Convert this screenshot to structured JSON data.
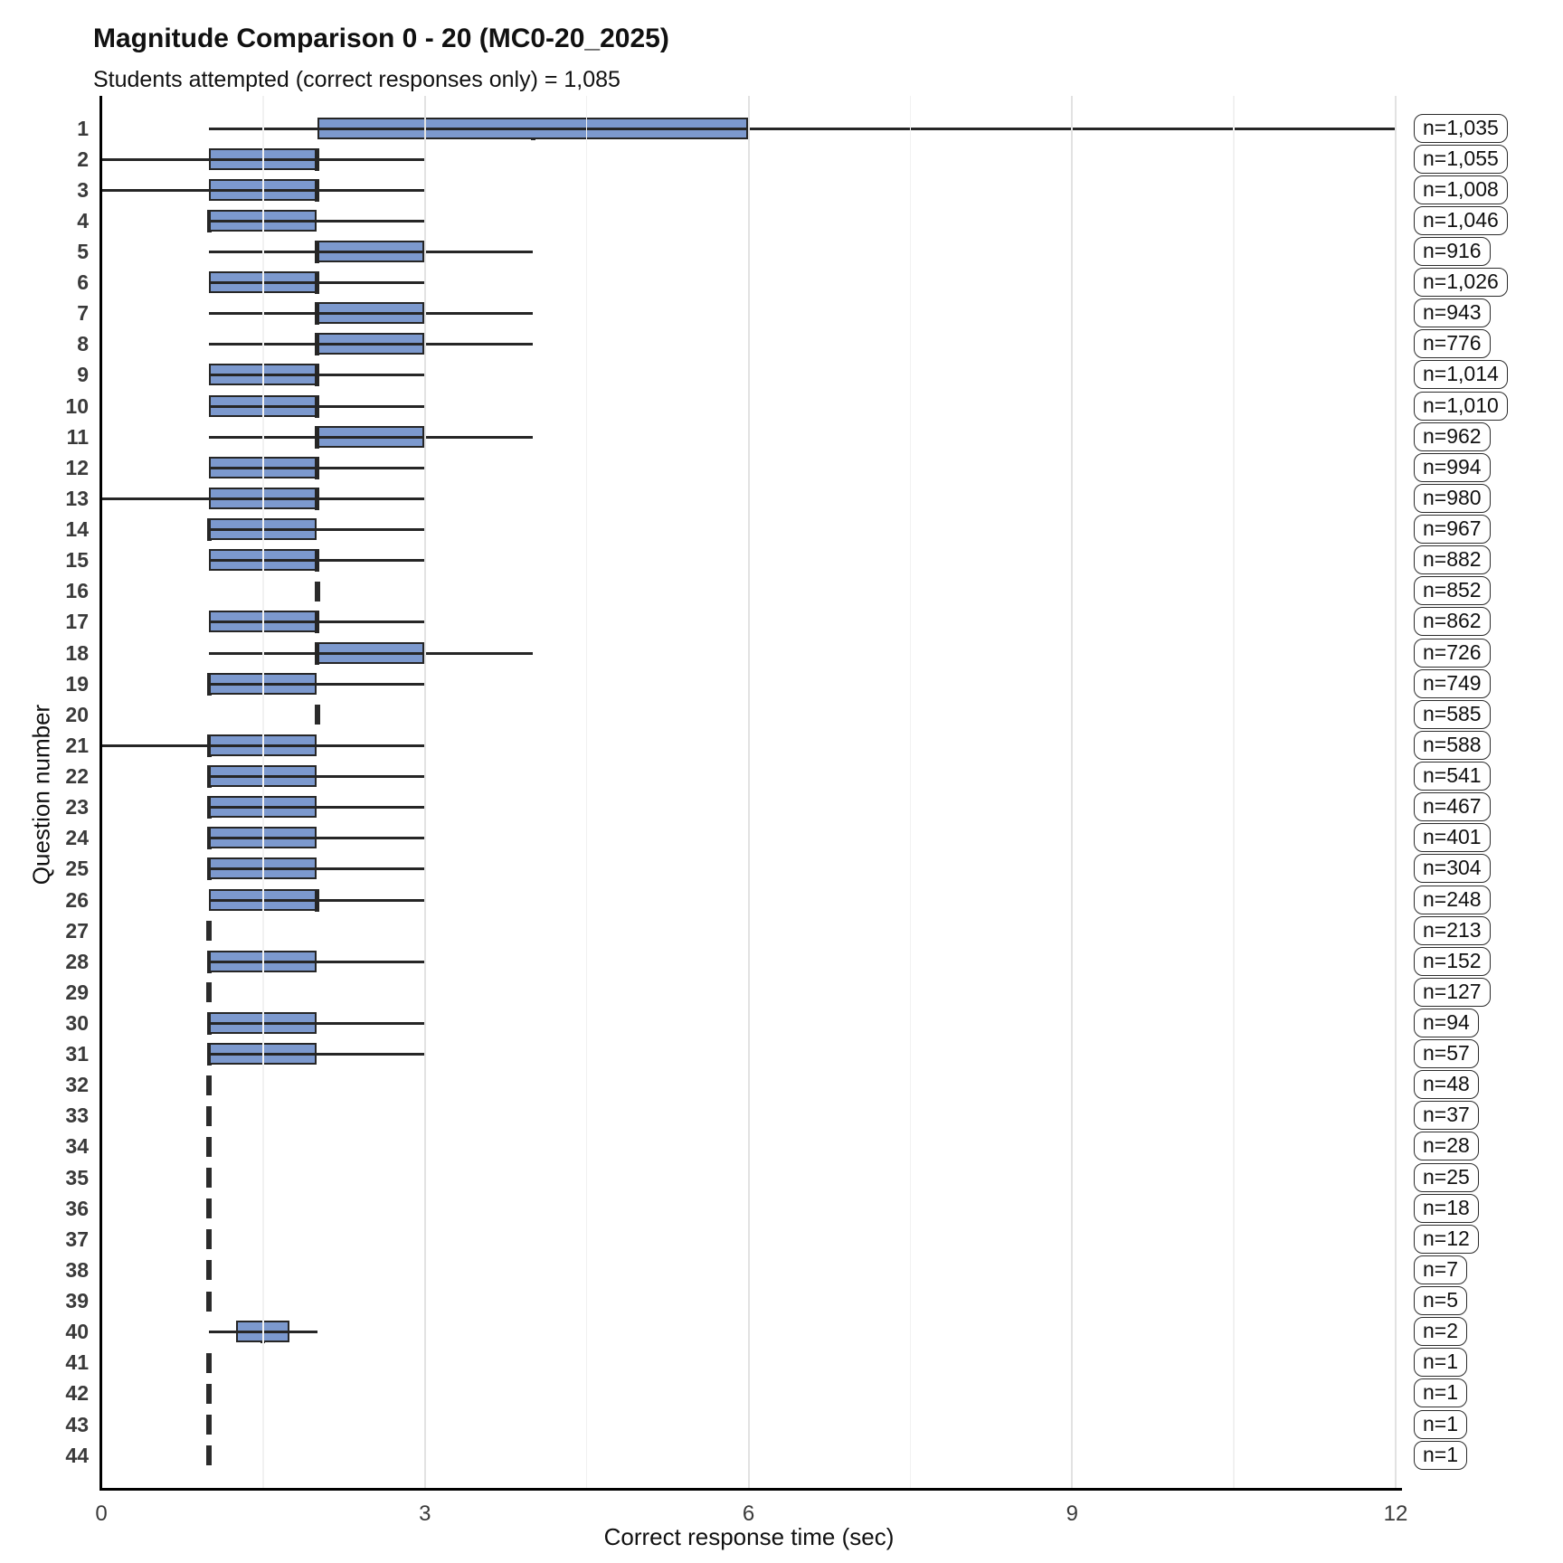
{
  "chart_data": {
    "type": "boxplot",
    "orientation": "horizontal",
    "title": "Magnitude Comparison 0 - 20 (MC0-20_2025)",
    "subtitle": "Students attempted (correct responses only) = 1,085",
    "students_attempted_total": "1,085",
    "xlabel": "Correct response time (sec)",
    "ylabel": "Question number",
    "xlim": [
      0,
      12
    ],
    "x_major_ticks": [
      0,
      3,
      6,
      9,
      12
    ],
    "x_minor_gridlines": [
      1.5,
      4.5,
      7.5,
      10.5
    ],
    "grid": "vertical gridlines only, white background",
    "legend_position": "none",
    "rows": [
      {
        "question": "1",
        "n_label": "n=1,035",
        "n": 1035,
        "whisker_low": 1,
        "q1": 2,
        "median": 4,
        "q3": 6,
        "whisker_high": 12
      },
      {
        "question": "2",
        "n_label": "n=1,055",
        "n": 1055,
        "whisker_low": 0,
        "q1": 1,
        "median": 2,
        "q3": 2,
        "whisker_high": 3
      },
      {
        "question": "3",
        "n_label": "n=1,008",
        "n": 1008,
        "whisker_low": 0,
        "q1": 1,
        "median": 2,
        "q3": 2,
        "whisker_high": 3
      },
      {
        "question": "4",
        "n_label": "n=1,046",
        "n": 1046,
        "whisker_low": 1,
        "q1": 1,
        "median": 1,
        "q3": 2,
        "whisker_high": 3
      },
      {
        "question": "5",
        "n_label": "n=916",
        "n": 916,
        "whisker_low": 1,
        "q1": 2,
        "median": 2,
        "q3": 3,
        "whisker_high": 4
      },
      {
        "question": "6",
        "n_label": "n=1,026",
        "n": 1026,
        "whisker_low": 1,
        "q1": 1,
        "median": 2,
        "q3": 2,
        "whisker_high": 3
      },
      {
        "question": "7",
        "n_label": "n=943",
        "n": 943,
        "whisker_low": 1,
        "q1": 2,
        "median": 2,
        "q3": 3,
        "whisker_high": 4
      },
      {
        "question": "8",
        "n_label": "n=776",
        "n": 776,
        "whisker_low": 1,
        "q1": 2,
        "median": 2,
        "q3": 3,
        "whisker_high": 4
      },
      {
        "question": "9",
        "n_label": "n=1,014",
        "n": 1014,
        "whisker_low": 1,
        "q1": 1,
        "median": 2,
        "q3": 2,
        "whisker_high": 3
      },
      {
        "question": "10",
        "n_label": "n=1,010",
        "n": 1010,
        "whisker_low": 1,
        "q1": 1,
        "median": 2,
        "q3": 2,
        "whisker_high": 3
      },
      {
        "question": "11",
        "n_label": "n=962",
        "n": 962,
        "whisker_low": 1,
        "q1": 2,
        "median": 2,
        "q3": 3,
        "whisker_high": 4
      },
      {
        "question": "12",
        "n_label": "n=994",
        "n": 994,
        "whisker_low": 1,
        "q1": 1,
        "median": 2,
        "q3": 2,
        "whisker_high": 3
      },
      {
        "question": "13",
        "n_label": "n=980",
        "n": 980,
        "whisker_low": 0,
        "q1": 1,
        "median": 2,
        "q3": 2,
        "whisker_high": 3
      },
      {
        "question": "14",
        "n_label": "n=967",
        "n": 967,
        "whisker_low": 1,
        "q1": 1,
        "median": 1,
        "q3": 2,
        "whisker_high": 3
      },
      {
        "question": "15",
        "n_label": "n=882",
        "n": 882,
        "whisker_low": 1,
        "q1": 1,
        "median": 2,
        "q3": 2,
        "whisker_high": 3
      },
      {
        "question": "16",
        "n_label": "n=852",
        "n": 852,
        "whisker_low": 2,
        "q1": 2,
        "median": 2,
        "q3": 2,
        "whisker_high": 2
      },
      {
        "question": "17",
        "n_label": "n=862",
        "n": 862,
        "whisker_low": 1,
        "q1": 1,
        "median": 2,
        "q3": 2,
        "whisker_high": 3
      },
      {
        "question": "18",
        "n_label": "n=726",
        "n": 726,
        "whisker_low": 1,
        "q1": 2,
        "median": 2,
        "q3": 3,
        "whisker_high": 4
      },
      {
        "question": "19",
        "n_label": "n=749",
        "n": 749,
        "whisker_low": 1,
        "q1": 1,
        "median": 1,
        "q3": 2,
        "whisker_high": 3
      },
      {
        "question": "20",
        "n_label": "n=585",
        "n": 585,
        "whisker_low": 2,
        "q1": 2,
        "median": 2,
        "q3": 2,
        "whisker_high": 2
      },
      {
        "question": "21",
        "n_label": "n=588",
        "n": 588,
        "whisker_low": 0,
        "q1": 1,
        "median": 1,
        "q3": 2,
        "whisker_high": 3
      },
      {
        "question": "22",
        "n_label": "n=541",
        "n": 541,
        "whisker_low": 1,
        "q1": 1,
        "median": 1,
        "q3": 2,
        "whisker_high": 3
      },
      {
        "question": "23",
        "n_label": "n=467",
        "n": 467,
        "whisker_low": 1,
        "q1": 1,
        "median": 1,
        "q3": 2,
        "whisker_high": 3
      },
      {
        "question": "24",
        "n_label": "n=401",
        "n": 401,
        "whisker_low": 1,
        "q1": 1,
        "median": 1,
        "q3": 2,
        "whisker_high": 3
      },
      {
        "question": "25",
        "n_label": "n=304",
        "n": 304,
        "whisker_low": 1,
        "q1": 1,
        "median": 1,
        "q3": 2,
        "whisker_high": 3
      },
      {
        "question": "26",
        "n_label": "n=248",
        "n": 248,
        "whisker_low": 1,
        "q1": 1,
        "median": 2,
        "q3": 2,
        "whisker_high": 3
      },
      {
        "question": "27",
        "n_label": "n=213",
        "n": 213,
        "whisker_low": 1,
        "q1": 1,
        "median": 1,
        "q3": 1,
        "whisker_high": 1
      },
      {
        "question": "28",
        "n_label": "n=152",
        "n": 152,
        "whisker_low": 1,
        "q1": 1,
        "median": 1,
        "q3": 2,
        "whisker_high": 3
      },
      {
        "question": "29",
        "n_label": "n=127",
        "n": 127,
        "whisker_low": 1,
        "q1": 1,
        "median": 1,
        "q3": 1,
        "whisker_high": 1
      },
      {
        "question": "30",
        "n_label": "n=94",
        "n": 94,
        "whisker_low": 1,
        "q1": 1,
        "median": 1,
        "q3": 2,
        "whisker_high": 3
      },
      {
        "question": "31",
        "n_label": "n=57",
        "n": 57,
        "whisker_low": 1,
        "q1": 1,
        "median": 1,
        "q3": 2,
        "whisker_high": 3
      },
      {
        "question": "32",
        "n_label": "n=48",
        "n": 48,
        "whisker_low": 1,
        "q1": 1,
        "median": 1,
        "q3": 1,
        "whisker_high": 1
      },
      {
        "question": "33",
        "n_label": "n=37",
        "n": 37,
        "whisker_low": 1,
        "q1": 1,
        "median": 1,
        "q3": 1,
        "whisker_high": 1
      },
      {
        "question": "34",
        "n_label": "n=28",
        "n": 28,
        "whisker_low": 1,
        "q1": 1,
        "median": 1,
        "q3": 1,
        "whisker_high": 1
      },
      {
        "question": "35",
        "n_label": "n=25",
        "n": 25,
        "whisker_low": 1,
        "q1": 1,
        "median": 1,
        "q3": 1,
        "whisker_high": 1
      },
      {
        "question": "36",
        "n_label": "n=18",
        "n": 18,
        "whisker_low": 1,
        "q1": 1,
        "median": 1,
        "q3": 1,
        "whisker_high": 1
      },
      {
        "question": "37",
        "n_label": "n=12",
        "n": 12,
        "whisker_low": 1,
        "q1": 1,
        "median": 1,
        "q3": 1,
        "whisker_high": 1
      },
      {
        "question": "38",
        "n_label": "n=7",
        "n": 7,
        "whisker_low": 1,
        "q1": 1,
        "median": 1,
        "q3": 1,
        "whisker_high": 1
      },
      {
        "question": "39",
        "n_label": "n=5",
        "n": 5,
        "whisker_low": 1,
        "q1": 1,
        "median": 1,
        "q3": 1,
        "whisker_high": 1
      },
      {
        "question": "40",
        "n_label": "n=2",
        "n": 2,
        "whisker_low": 1,
        "q1": 1.25,
        "median": 1.5,
        "q3": 1.75,
        "whisker_high": 2
      },
      {
        "question": "41",
        "n_label": "n=1",
        "n": 1,
        "whisker_low": 1,
        "q1": 1,
        "median": 1,
        "q3": 1,
        "whisker_high": 1
      },
      {
        "question": "42",
        "n_label": "n=1",
        "n": 1,
        "whisker_low": 1,
        "q1": 1,
        "median": 1,
        "q3": 1,
        "whisker_high": 1
      },
      {
        "question": "43",
        "n_label": "n=1",
        "n": 1,
        "whisker_low": 1,
        "q1": 1,
        "median": 1,
        "q3": 1,
        "whisker_high": 1
      },
      {
        "question": "44",
        "n_label": "n=1",
        "n": 1,
        "whisker_low": 1,
        "q1": 1,
        "median": 1,
        "q3": 1,
        "whisker_high": 1
      }
    ]
  },
  "colors": {
    "box_fill": "#7c99ce",
    "box_border": "#262626",
    "whisker": "#262626",
    "grid_major": "#e2e2e2",
    "grid_minor": "#f1f1f1",
    "axis": "#000000",
    "badge_border": "#2b2b2b",
    "tick_text": "#3a3a3a",
    "text": "#111111"
  }
}
